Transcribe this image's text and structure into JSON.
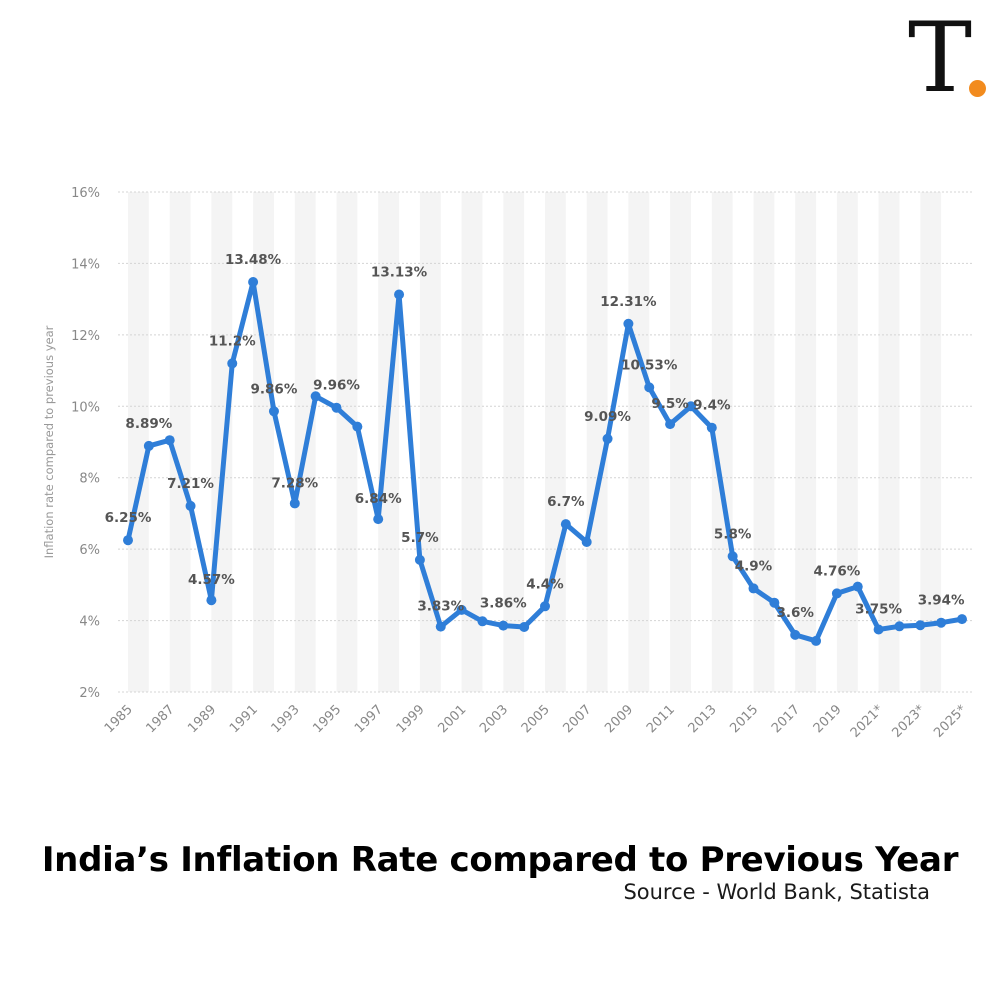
{
  "logo": {
    "letter": "T",
    "dot_color": "#f28b1e"
  },
  "chart_data": {
    "type": "line",
    "title": "India’s Inflation Rate compared to Previous Year",
    "subtitle": "Source - World Bank, Statista",
    "ylabel": "Inflation rate compared to previous year",
    "xlabel": "",
    "ylim": [
      2,
      16
    ],
    "yticks": [
      2,
      4,
      6,
      8,
      10,
      12,
      14,
      16
    ],
    "ytick_labels": [
      "2%",
      "4%",
      "6%",
      "8%",
      "10%",
      "12%",
      "14%",
      "16%"
    ],
    "x": [
      "1985",
      "1986",
      "1987",
      "1988",
      "1989",
      "1990",
      "1991",
      "1992",
      "1993",
      "1994",
      "1995",
      "1996",
      "1997",
      "1998",
      "1999",
      "2000",
      "2001",
      "2002",
      "2003",
      "2004",
      "2005",
      "2006",
      "2007",
      "2008",
      "2009",
      "2010",
      "2011",
      "2012",
      "2013",
      "2014",
      "2015",
      "2016",
      "2017",
      "2018",
      "2019",
      "2020",
      "2021*",
      "2022*",
      "2023*",
      "2024*",
      "2025*"
    ],
    "xtick_labels": [
      "1985",
      "1987",
      "1989",
      "1991",
      "1993",
      "1995",
      "1997",
      "1999",
      "2001",
      "2003",
      "2005",
      "2007",
      "2009",
      "2011",
      "2013",
      "2015",
      "2017",
      "2019",
      "2021*",
      "2023*",
      "2025*"
    ],
    "series": [
      {
        "values": [
          6.25,
          8.89,
          9.05,
          7.21,
          4.57,
          11.2,
          13.48,
          9.86,
          7.28,
          10.28,
          9.96,
          9.43,
          6.84,
          13.13,
          5.7,
          3.83,
          4.3,
          3.98,
          3.86,
          3.82,
          4.4,
          6.7,
          6.2,
          9.09,
          12.31,
          10.53,
          9.5,
          10.0,
          9.4,
          5.8,
          4.9,
          4.5,
          3.6,
          3.43,
          4.76,
          4.95,
          3.75,
          3.84,
          3.87,
          3.94,
          4.04
        ],
        "color": "#2f7ed8"
      }
    ],
    "data_labels": [
      {
        "x": "1985",
        "text": "6.25%"
      },
      {
        "x": "1986",
        "text": "8.89%"
      },
      {
        "x": "1988",
        "text": "7.21%"
      },
      {
        "x": "1989",
        "text": "4.57%"
      },
      {
        "x": "1990",
        "text": "11.2%"
      },
      {
        "x": "1991",
        "text": "13.48%"
      },
      {
        "x": "1992",
        "text": "9.86%"
      },
      {
        "x": "1993",
        "text": "7.28%"
      },
      {
        "x": "1995",
        "text": "9.96%"
      },
      {
        "x": "1997",
        "text": "6.84%"
      },
      {
        "x": "1998",
        "text": "13.13%"
      },
      {
        "x": "1999",
        "text": "5.7%"
      },
      {
        "x": "2000",
        "text": "3.83%"
      },
      {
        "x": "2003",
        "text": "3.86%"
      },
      {
        "x": "2005",
        "text": "4.4%"
      },
      {
        "x": "2006",
        "text": "6.7%"
      },
      {
        "x": "2008",
        "text": "9.09%"
      },
      {
        "x": "2009",
        "text": "12.31%"
      },
      {
        "x": "2010",
        "text": "10.53%"
      },
      {
        "x": "2011",
        "text": "9.5%"
      },
      {
        "x": "2013",
        "text": "9.4%"
      },
      {
        "x": "2014",
        "text": "5.8%"
      },
      {
        "x": "2015",
        "text": "4.9%"
      },
      {
        "x": "2017",
        "text": "3.6%"
      },
      {
        "x": "2019",
        "text": "4.76%"
      },
      {
        "x": "2021*",
        "text": "3.75%"
      },
      {
        "x": "2024*",
        "text": "3.94%"
      }
    ],
    "grid": true,
    "alternating_bands": true,
    "legend": "none"
  }
}
